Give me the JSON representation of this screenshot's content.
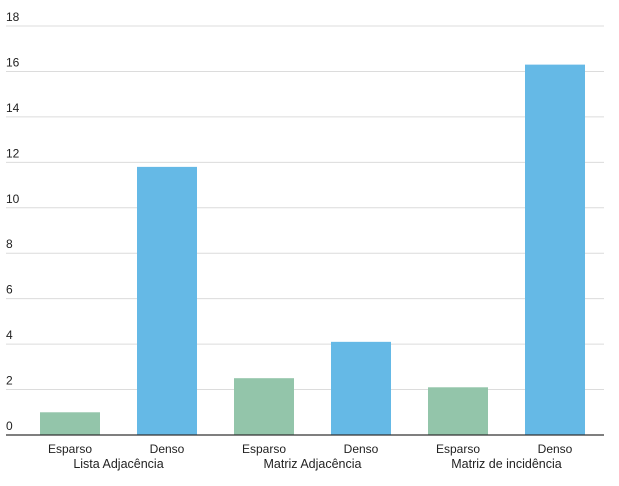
{
  "chart_data": {
    "type": "bar",
    "title": "",
    "xlabel": "",
    "ylabel": "",
    "ylim": [
      0,
      18
    ],
    "yticks": [
      0,
      2,
      4,
      6,
      8,
      10,
      12,
      14,
      16,
      18
    ],
    "grid": true,
    "legend": "none",
    "groups": [
      {
        "label": "Lista Adjacência",
        "bars": [
          {
            "category": "Esparso",
            "value": 1.0,
            "color": "#93c5aa"
          },
          {
            "category": "Denso",
            "value": 11.8,
            "color": "#65b9e6"
          }
        ]
      },
      {
        "label": "Matriz Adjacência",
        "bars": [
          {
            "category": "Esparso",
            "value": 2.5,
            "color": "#93c5aa"
          },
          {
            "category": "Denso",
            "value": 4.1,
            "color": "#65b9e6"
          }
        ]
      },
      {
        "label": "Matriz de incidência",
        "bars": [
          {
            "category": "Esparso",
            "value": 2.1,
            "color": "#93c5aa"
          },
          {
            "category": "Denso",
            "value": 16.3,
            "color": "#65b9e6"
          }
        ]
      }
    ]
  }
}
